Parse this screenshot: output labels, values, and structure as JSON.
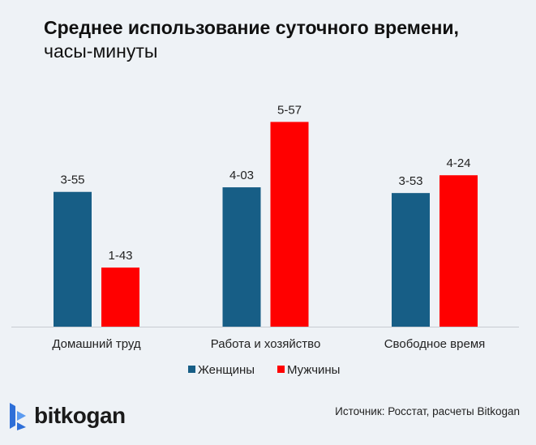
{
  "title": {
    "bold": "Среднее использование суточного времени,",
    "regular": "часы-минуты"
  },
  "source": "Источник: Росстат, расчеты Bitkogan",
  "logo": {
    "text": "bitkogan",
    "color": "#2e6fd8"
  },
  "chart_data": {
    "type": "bar",
    "title": "Среднее использование суточного времени, часы-минуты",
    "categories": [
      "Домашний труд",
      "Работа и хозяйство",
      "Свободное время"
    ],
    "value_unit": "minutes",
    "ylim": [
      0,
      400
    ],
    "grid": false,
    "legend_position": "bottom",
    "series": [
      {
        "name": "Женщины",
        "color": "#175e86",
        "values": [
          235,
          243,
          233
        ],
        "labels": [
          "3-55",
          "4-03",
          "3-53"
        ]
      },
      {
        "name": "Мужчины",
        "color": "#ff0000",
        "values": [
          103,
          357,
          264
        ],
        "labels": [
          "1-43",
          "5-57",
          "4-24"
        ]
      }
    ]
  }
}
